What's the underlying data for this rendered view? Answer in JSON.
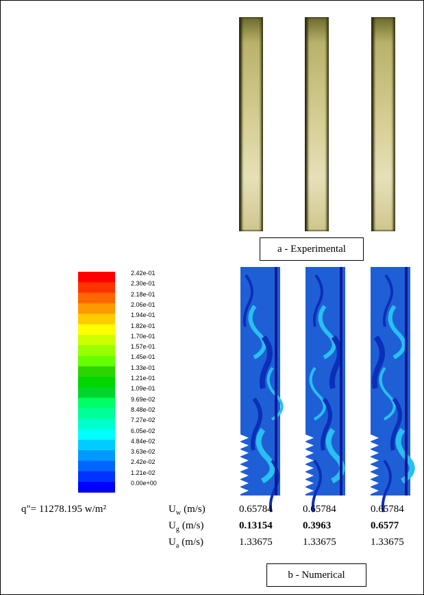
{
  "colorbar": {
    "labels": [
      "2.42e-01",
      "2.30e-01",
      "2.18e-01",
      "2.06e-01",
      "1.94e-01",
      "1.82e-01",
      "1.70e-01",
      "1.57e-01",
      "1.45e-01",
      "1.33e-01",
      "1.21e-01",
      "1.09e-01",
      "9.69e-02",
      "8.48e-02",
      "7.27e-02",
      "6.05e-02",
      "4.84e-02",
      "3.63e-02",
      "2.42e-02",
      "1.21e-02",
      "0.00e+00"
    ]
  },
  "captions": {
    "experimental": "a - Experimental",
    "numerical": "b - Numerical"
  },
  "heat_flux": "q\"= 11278.195 w/m²",
  "table": {
    "rows": [
      {
        "label": "U",
        "sub": "w",
        "unit": "(m/s)",
        "values": [
          "0.65784",
          "0.65784",
          "0.65784"
        ]
      },
      {
        "label": "U",
        "sub": "g",
        "unit": "(m/s)",
        "values": [
          "0.13154",
          "0.3963",
          "0.6577"
        ]
      },
      {
        "label": "U",
        "sub": "a",
        "unit": "(m/s)",
        "values": [
          "1.33675",
          "1.33675",
          "1.33675"
        ]
      }
    ]
  }
}
